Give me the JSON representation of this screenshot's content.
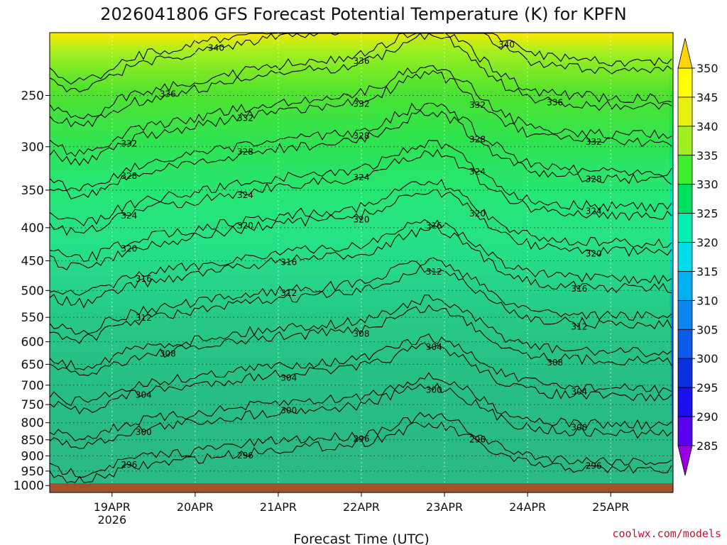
{
  "chart_data": {
    "type": "heatmap",
    "title": "2026041806 GFS Forecast Potential Temperature (K) for KPFN",
    "xlabel": "Forecast Time (UTC)",
    "ylabel": "",
    "credit": "coolwx.com/models",
    "y_axis": {
      "scale": "log-pressure",
      "inverted": true,
      "unit": "hPa",
      "range": [
        200,
        1025
      ],
      "ticks": [
        250,
        300,
        350,
        400,
        450,
        500,
        550,
        600,
        650,
        700,
        750,
        800,
        850,
        900,
        950,
        1000
      ]
    },
    "x_axis": {
      "range": [
        "2026-04-18T06",
        "2026-04-25T18"
      ],
      "ticks": [
        {
          "label": "19APR",
          "sub": "2026",
          "time": "2026-04-19T00"
        },
        {
          "label": "20APR",
          "sub": "",
          "time": "2026-04-20T00"
        },
        {
          "label": "21APR",
          "sub": "",
          "time": "2026-04-21T00"
        },
        {
          "label": "22APR",
          "sub": "",
          "time": "2026-04-22T00"
        },
        {
          "label": "23APR",
          "sub": "",
          "time": "2026-04-23T00"
        },
        {
          "label": "24APR",
          "sub": "",
          "time": "2026-04-24T00"
        },
        {
          "label": "25APR",
          "sub": "",
          "time": "2026-04-25T00"
        }
      ],
      "grid": "dotted"
    },
    "colorbar": {
      "levels": [
        285,
        290,
        295,
        300,
        305,
        310,
        315,
        320,
        325,
        330,
        335,
        340,
        345,
        350
      ],
      "labels": [
        "350",
        "345",
        "340",
        "335",
        "330",
        "325",
        "320",
        "315",
        "310",
        "305",
        "300",
        "295",
        "290",
        "285"
      ],
      "colors": [
        "#9a00e0",
        "#5a00f0",
        "#1a10f0",
        "#0a30e0",
        "#0c5ae8",
        "#0a86ee",
        "#00b0f2",
        "#00dcea",
        "#00f0b0",
        "#00e060",
        "#40ee30",
        "#a0f020",
        "#e8f010",
        "#ffff00",
        "#ffd400"
      ],
      "extend": "both"
    },
    "contour_interval": 4,
    "contour_labels": [
      {
        "text": "340"
      },
      {
        "text": "340"
      },
      {
        "text": "336"
      },
      {
        "text": "336"
      },
      {
        "text": "336"
      },
      {
        "text": "332"
      },
      {
        "text": "332"
      },
      {
        "text": "332"
      },
      {
        "text": "332"
      },
      {
        "text": "332"
      },
      {
        "text": "328"
      },
      {
        "text": "328"
      },
      {
        "text": "328"
      },
      {
        "text": "328"
      },
      {
        "text": "328"
      },
      {
        "text": "324"
      },
      {
        "text": "324"
      },
      {
        "text": "324"
      },
      {
        "text": "324"
      },
      {
        "text": "324"
      },
      {
        "text": "320"
      },
      {
        "text": "320"
      },
      {
        "text": "320"
      },
      {
        "text": "320"
      },
      {
        "text": "320"
      },
      {
        "text": "316"
      },
      {
        "text": "316"
      },
      {
        "text": "316"
      },
      {
        "text": "316"
      },
      {
        "text": "312"
      },
      {
        "text": "312"
      },
      {
        "text": "312"
      },
      {
        "text": "312"
      },
      {
        "text": "308"
      },
      {
        "text": "308"
      },
      {
        "text": "308"
      },
      {
        "text": "304"
      },
      {
        "text": "304"
      },
      {
        "text": "304"
      },
      {
        "text": "304"
      },
      {
        "text": "300"
      },
      {
        "text": "300"
      },
      {
        "text": "300"
      },
      {
        "text": "300"
      },
      {
        "text": "296"
      },
      {
        "text": "296"
      },
      {
        "text": "296"
      },
      {
        "text": "296"
      },
      {
        "text": "296"
      }
    ],
    "surface_color": "#a0522d"
  }
}
